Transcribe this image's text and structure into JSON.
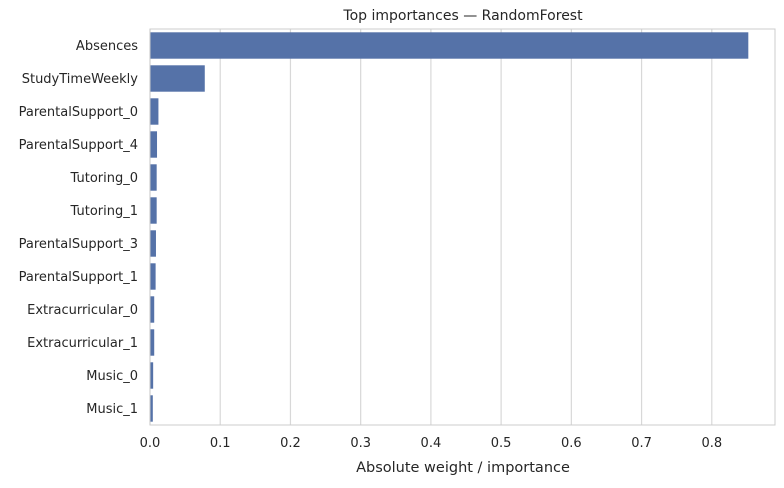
{
  "chart_data": {
    "type": "bar",
    "orientation": "horizontal",
    "title": "Top importances — RandomForest",
    "xlabel": "Absolute weight / importance",
    "ylabel": "",
    "xlim": [
      0,
      0.89
    ],
    "xticks": [
      0.0,
      0.1,
      0.2,
      0.3,
      0.4,
      0.5,
      0.6,
      0.7,
      0.8
    ],
    "xtick_labels": [
      "0.0",
      "0.1",
      "0.2",
      "0.3",
      "0.4",
      "0.5",
      "0.6",
      "0.7",
      "0.8"
    ],
    "grid": "vertical",
    "categories": [
      "Absences",
      "StudyTimeWeekly",
      "ParentalSupport_0",
      "ParentalSupport_4",
      "Tutoring_0",
      "Tutoring_1",
      "ParentalSupport_3",
      "ParentalSupport_1",
      "Extracurricular_0",
      "Extracurricular_1",
      "Music_0",
      "Music_1"
    ],
    "values": [
      0.852,
      0.078,
      0.012,
      0.01,
      0.0095,
      0.0095,
      0.0085,
      0.008,
      0.006,
      0.006,
      0.0045,
      0.004
    ],
    "colors": {
      "bar": "#5572a8",
      "grid": "#d8d8d8",
      "spine": "#cccccc",
      "text": "#262626"
    }
  }
}
